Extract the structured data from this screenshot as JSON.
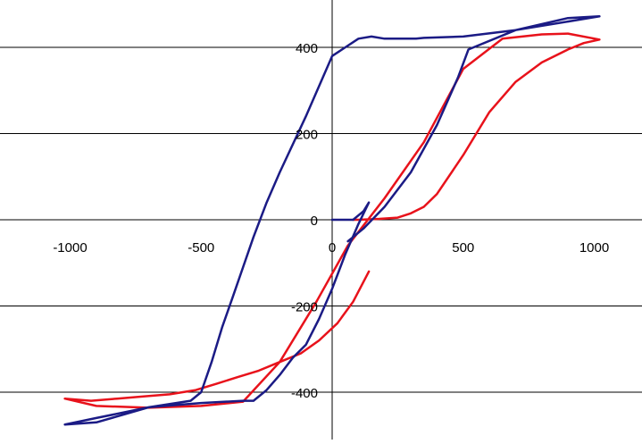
{
  "chart_data": {
    "type": "line",
    "title": "",
    "xlabel": "",
    "ylabel": "",
    "xlim": [
      -1250,
      1170
    ],
    "ylim": [
      -510,
      500
    ],
    "grid": {
      "horizontal": true,
      "vertical": false
    },
    "legend": "none",
    "x_ticks": [
      {
        "value": -1000,
        "label": "-1000"
      },
      {
        "value": -500,
        "label": "-500"
      },
      {
        "value": 0,
        "label": "0"
      },
      {
        "value": 500,
        "label": "500"
      },
      {
        "value": 1000,
        "label": "1000"
      }
    ],
    "y_ticks": [
      {
        "value": -400,
        "label": "-400"
      },
      {
        "value": -200,
        "label": "-200"
      },
      {
        "value": 0,
        "label": "0"
      },
      {
        "value": 200,
        "label": "200"
      },
      {
        "value": 400,
        "label": "400"
      }
    ],
    "series": [
      {
        "color": "#e8121b",
        "x": [
          140,
          80,
          20,
          -50,
          -120,
          -200,
          -280,
          -360,
          -440,
          -520,
          -620,
          -720,
          -820,
          -920,
          -1020,
          -900,
          -700,
          -500,
          -340,
          -200,
          -60,
          60,
          200,
          350,
          500,
          650,
          800,
          900,
          1020,
          960,
          900,
          800,
          700,
          600,
          500,
          400,
          350,
          300,
          250,
          180,
          100,
          80
        ],
        "y": [
          -120,
          -190,
          -240,
          -280,
          -310,
          -330,
          -350,
          -365,
          -380,
          -395,
          -405,
          -410,
          -415,
          -420,
          -415,
          -432,
          -436,
          -432,
          -422,
          -330,
          -190,
          -60,
          50,
          180,
          350,
          420,
          430,
          432,
          418,
          410,
          395,
          365,
          320,
          250,
          150,
          60,
          30,
          15,
          5,
          2,
          0,
          0
        ],
        "style": "solid"
      },
      {
        "color": "#1b1b85",
        "x": [
          0,
          60,
          80,
          120,
          140,
          100,
          50,
          0,
          -50,
          -100,
          -150,
          -200,
          -250,
          -300,
          -340,
          -500,
          -700,
          -900,
          -1020,
          -900,
          -700,
          -540,
          -500,
          -460,
          -420,
          -380,
          -340,
          -300,
          -250,
          -200,
          -100,
          0,
          50,
          100,
          150,
          200,
          250,
          320,
          350,
          500,
          700,
          900,
          1020,
          900,
          700,
          520,
          480,
          400,
          300,
          200,
          120,
          80,
          60
        ],
        "y": [
          0,
          0,
          0,
          20,
          40,
          -10,
          -80,
          -160,
          -230,
          -290,
          -320,
          -360,
          -395,
          -420,
          -420,
          -425,
          -435,
          -470,
          -475,
          -460,
          -435,
          -420,
          -400,
          -330,
          -250,
          -180,
          -110,
          -40,
          40,
          110,
          240,
          380,
          400,
          420,
          425,
          420,
          420,
          420,
          422,
          425,
          440,
          460,
          472,
          468,
          440,
          395,
          330,
          220,
          110,
          30,
          -20,
          -40,
          -50
        ],
        "style": "solid"
      }
    ]
  }
}
